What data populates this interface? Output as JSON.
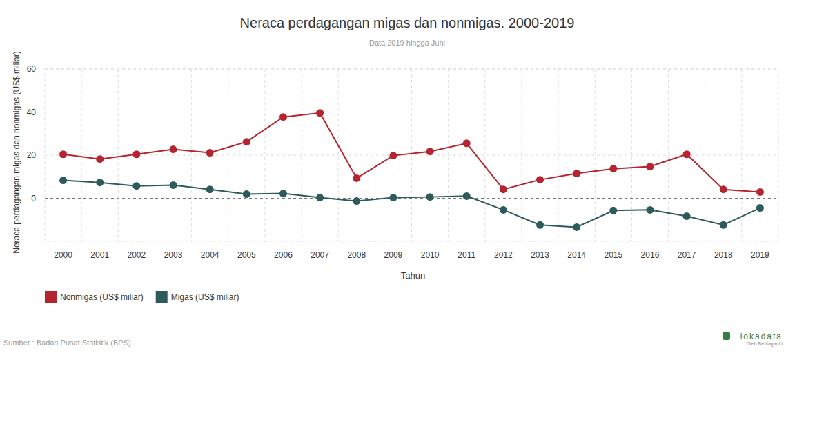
{
  "chart_data": {
    "type": "line",
    "title": "Neraca perdagangan migas dan nonmigas. 2000-2019",
    "subtitle": "Data 2019 hingga Juni",
    "x_label": "Tahun",
    "y_label": "Neraca perdagangan migas dan nonmigas (US$ miliar)",
    "source": "Sumber : Badan Pusat Statistik (BPS)",
    "annotations": [
      "lokadata",
      "Oleh Beritagar.id"
    ],
    "categories": [
      "2000",
      "2001",
      "2002",
      "2003",
      "2004",
      "2005",
      "2006",
      "2007",
      "2008",
      "2009",
      "2010",
      "2011",
      "2012",
      "2013",
      "2014",
      "2015",
      "2016",
      "2017",
      "2018",
      "2019"
    ],
    "series": [
      {
        "name": "Nonmigas (US$ miliar)",
        "color": "#b5252f",
        "marker": "circle",
        "values": [
          20.4,
          18.2,
          20.4,
          22.7,
          21.1,
          26.2,
          37.7,
          39.6,
          9.3,
          19.8,
          21.7,
          25.5,
          4.1,
          8.6,
          11.5,
          13.7,
          14.7,
          20.4,
          4.1,
          2.9
        ]
      },
      {
        "name": "Migas (US$ miliar)",
        "color": "#2d5a5a",
        "marker": "circle",
        "values": [
          8.3,
          7.3,
          5.7,
          6.1,
          4.1,
          1.9,
          2.2,
          0.3,
          -1.3,
          0.3,
          0.6,
          1.0,
          -5.4,
          -12.4,
          -13.4,
          -5.7,
          -5.4,
          -8.3,
          -12.4,
          -4.5
        ]
      }
    ],
    "ylim": [
      -20,
      60
    ],
    "yticks": [
      0,
      20,
      40,
      60
    ],
    "grid": true,
    "legend": "bottom-left"
  }
}
